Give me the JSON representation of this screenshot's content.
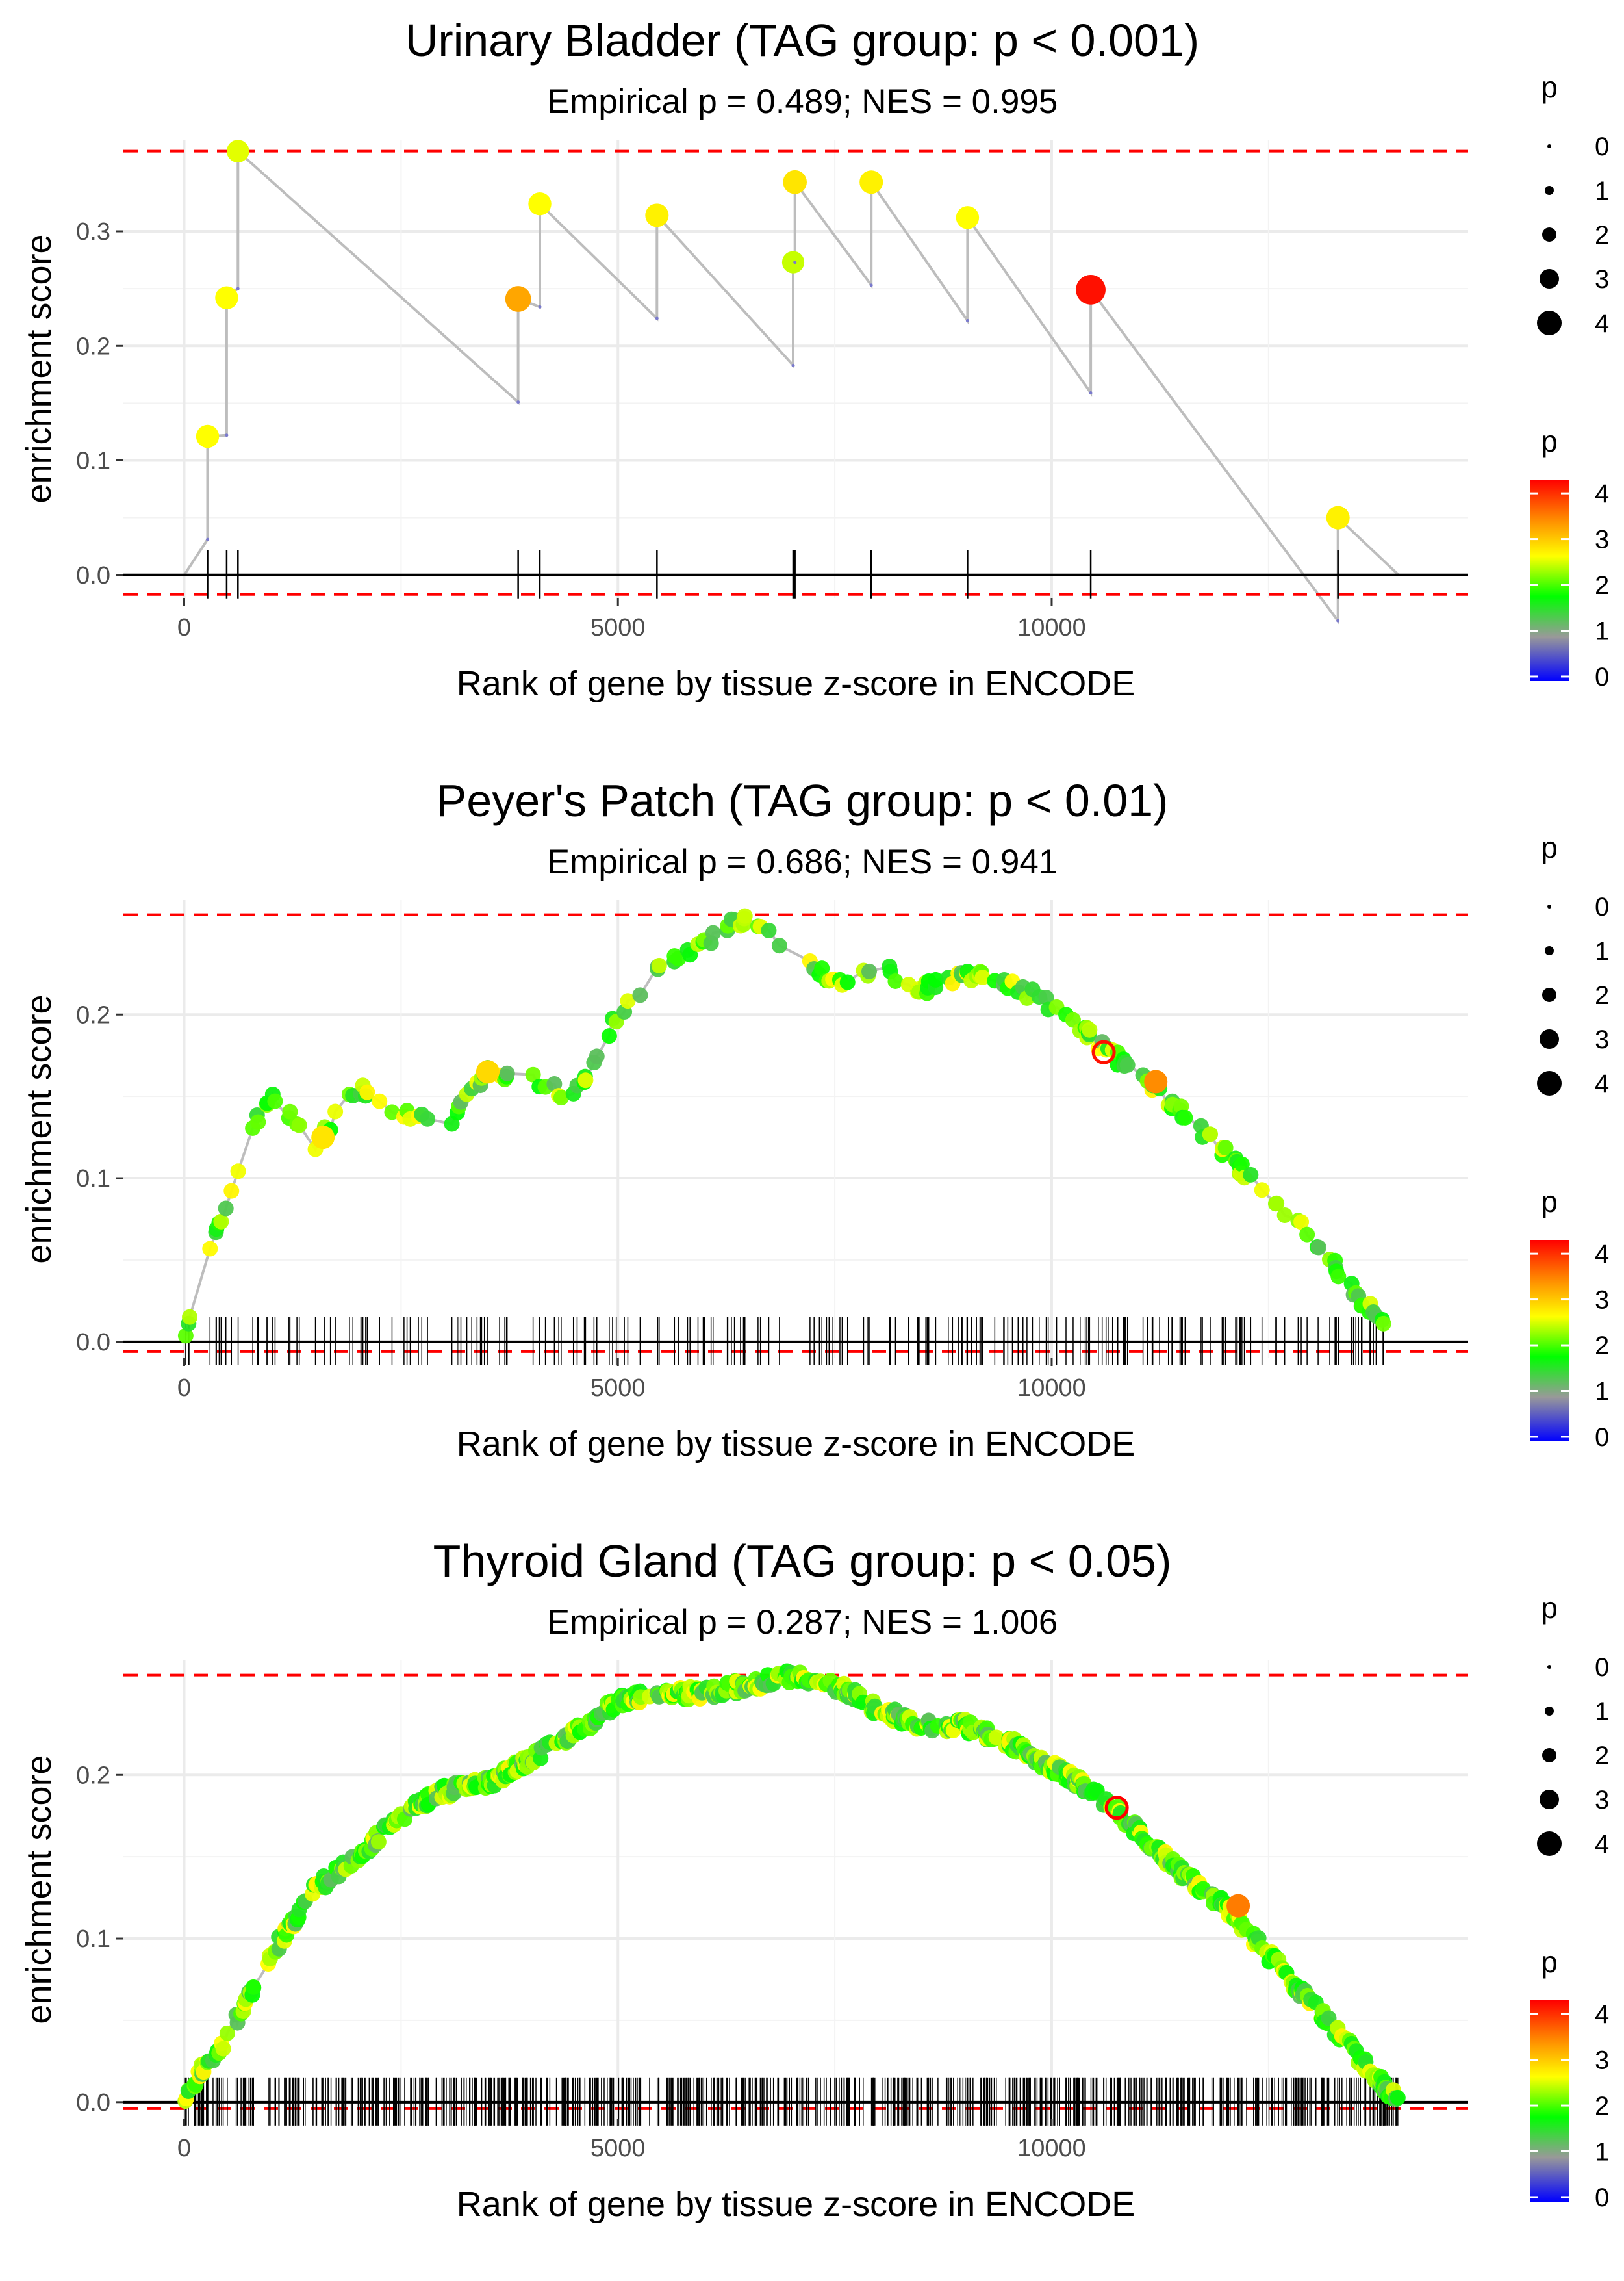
{
  "chart_data": [
    {
      "type": "scatter",
      "title": "Urinary Bladder (TAG group: p < 0.001)",
      "subtitle": "Empirical p = 0.489; NES = 0.995",
      "xlabel": "Rank of gene by tissue z-score in ENCODE",
      "ylabel": "enrichment score",
      "xlim": [
        -700,
        14800
      ],
      "ylim": [
        -0.02,
        0.38
      ],
      "xticks": [
        0,
        5000,
        10000
      ],
      "xtick_labels": [
        "0",
        "5000",
        "10000"
      ],
      "yticks": [
        0.0,
        0.1,
        0.2,
        0.3
      ],
      "ytick_labels": [
        "0.0",
        "0.1",
        "0.2",
        "0.3"
      ],
      "reference_lines": {
        "max_es": 0.37,
        "min_es": -0.017
      },
      "end_rank": 14000,
      "hits": [
        {
          "x": 270,
          "y": 0.121,
          "p": 2.7
        },
        {
          "x": 490,
          "y": 0.242,
          "p": 2.7
        },
        {
          "x": 620,
          "y": 0.37,
          "p": 2.6
        },
        {
          "x": 3850,
          "y": 0.241,
          "p": 3.4
        },
        {
          "x": 4100,
          "y": 0.324,
          "p": 2.7
        },
        {
          "x": 5450,
          "y": 0.314,
          "p": 2.8
        },
        {
          "x": 7020,
          "y": 0.273,
          "p": 2.5
        },
        {
          "x": 7040,
          "y": 0.343,
          "p": 2.9
        },
        {
          "x": 7920,
          "y": 0.343,
          "p": 2.8
        },
        {
          "x": 9030,
          "y": 0.312,
          "p": 2.7
        },
        {
          "x": 10450,
          "y": 0.249,
          "p": 4.4
        },
        {
          "x": 13300,
          "y": 0.05,
          "p": 2.8
        }
      ],
      "size_legend": {
        "title": "p",
        "labels": [
          "0",
          "1",
          "2",
          "3",
          "4"
        ]
      },
      "color_legend": {
        "title": "p",
        "labels": [
          "4",
          "3",
          "2",
          "1",
          "0"
        ]
      },
      "colors": {
        "line": "#bdbdbd",
        "ref": "#ff0000",
        "grid": "#ebebeb",
        "axis": "#000000"
      }
    },
    {
      "type": "scatter",
      "title": "Peyer's Patch (TAG group: p < 0.01)",
      "subtitle": "Empirical p = 0.686; NES = 0.941",
      "xlabel": "Rank of gene by tissue z-score in ENCODE",
      "ylabel": "enrichment score",
      "xlim": [
        -700,
        14800
      ],
      "ylim": [
        -0.01,
        0.27
      ],
      "xticks": [
        0,
        5000,
        10000
      ],
      "xtick_labels": [
        "0",
        "5000",
        "10000"
      ],
      "yticks": [
        0.0,
        0.1,
        0.2
      ],
      "ytick_labels": [
        "0.0",
        "0.1",
        "0.2"
      ],
      "reference_lines": {
        "max_es": 0.261,
        "min_es": -0.006
      },
      "end_rank": 14000,
      "curve": [
        [
          0,
          0.0
        ],
        [
          120,
          0.03
        ],
        [
          300,
          0.06
        ],
        [
          550,
          0.09
        ],
        [
          750,
          0.13
        ],
        [
          1000,
          0.15
        ],
        [
          1500,
          0.12
        ],
        [
          2000,
          0.155
        ],
        [
          2500,
          0.14
        ],
        [
          3000,
          0.13
        ],
        [
          3500,
          0.165
        ],
        [
          4000,
          0.16
        ],
        [
          4500,
          0.15
        ],
        [
          5000,
          0.2
        ],
        [
          5500,
          0.23
        ],
        [
          6000,
          0.245
        ],
        [
          6500,
          0.26
        ],
        [
          7000,
          0.24
        ],
        [
          7500,
          0.22
        ],
        [
          8000,
          0.23
        ],
        [
          8500,
          0.215
        ],
        [
          9000,
          0.225
        ],
        [
          9500,
          0.22
        ],
        [
          10000,
          0.205
        ],
        [
          10500,
          0.185
        ],
        [
          11000,
          0.162
        ],
        [
          11500,
          0.14
        ],
        [
          12000,
          0.115
        ],
        [
          12500,
          0.09
        ],
        [
          13000,
          0.065
        ],
        [
          13500,
          0.03
        ],
        [
          14000,
          0.0
        ]
      ],
      "highlights": [
        {
          "x": 10600,
          "y": 0.177,
          "p": 4.4
        },
        {
          "x": 11200,
          "y": 0.159,
          "p": 3.6
        },
        {
          "x": 3500,
          "y": 0.165,
          "p": 3.0
        },
        {
          "x": 1600,
          "y": 0.125,
          "p": 2.9
        }
      ],
      "size_legend": {
        "title": "p",
        "labels": [
          "0",
          "1",
          "2",
          "3",
          "4"
        ]
      },
      "color_legend": {
        "title": "p",
        "labels": [
          "4",
          "3",
          "2",
          "1",
          "0"
        ]
      }
    },
    {
      "type": "scatter",
      "title": "Thyroid Gland (TAG group: p < 0.05)",
      "subtitle": "Empirical p = 0.287; NES = 1.006",
      "xlabel": "Rank of gene by tissue z-score in ENCODE",
      "ylabel": "enrichment score",
      "xlim": [
        -700,
        14800
      ],
      "ylim": [
        -0.01,
        0.27
      ],
      "xticks": [
        0,
        5000,
        10000
      ],
      "xtick_labels": [
        "0",
        "5000",
        "10000"
      ],
      "yticks": [
        0.0,
        0.1,
        0.2
      ],
      "ytick_labels": [
        "0.0",
        "0.1",
        "0.2"
      ],
      "reference_lines": {
        "max_es": 0.261,
        "min_es": -0.004
      },
      "end_rank": 14000,
      "curve": [
        [
          0,
          0.0
        ],
        [
          200,
          0.02
        ],
        [
          500,
          0.04
        ],
        [
          1000,
          0.09
        ],
        [
          1500,
          0.13
        ],
        [
          2000,
          0.15
        ],
        [
          2500,
          0.175
        ],
        [
          3000,
          0.19
        ],
        [
          3500,
          0.195
        ],
        [
          4000,
          0.21
        ],
        [
          4500,
          0.225
        ],
        [
          5000,
          0.245
        ],
        [
          5500,
          0.25
        ],
        [
          6000,
          0.25
        ],
        [
          6500,
          0.255
        ],
        [
          7000,
          0.26
        ],
        [
          7500,
          0.255
        ],
        [
          8000,
          0.24
        ],
        [
          8500,
          0.23
        ],
        [
          9000,
          0.23
        ],
        [
          9500,
          0.22
        ],
        [
          10000,
          0.205
        ],
        [
          10500,
          0.19
        ],
        [
          11000,
          0.165
        ],
        [
          11500,
          0.14
        ],
        [
          12000,
          0.12
        ],
        [
          12500,
          0.09
        ],
        [
          13000,
          0.06
        ],
        [
          13500,
          0.03
        ],
        [
          14000,
          0.0
        ]
      ],
      "highlights": [
        {
          "x": 10750,
          "y": 0.18,
          "p": 4.5
        },
        {
          "x": 12150,
          "y": 0.12,
          "p": 3.7
        }
      ],
      "size_legend": {
        "title": "p",
        "labels": [
          "0",
          "1",
          "2",
          "3",
          "4"
        ]
      },
      "color_legend": {
        "title": "p",
        "labels": [
          "4",
          "3",
          "2",
          "1",
          "0"
        ]
      }
    }
  ]
}
